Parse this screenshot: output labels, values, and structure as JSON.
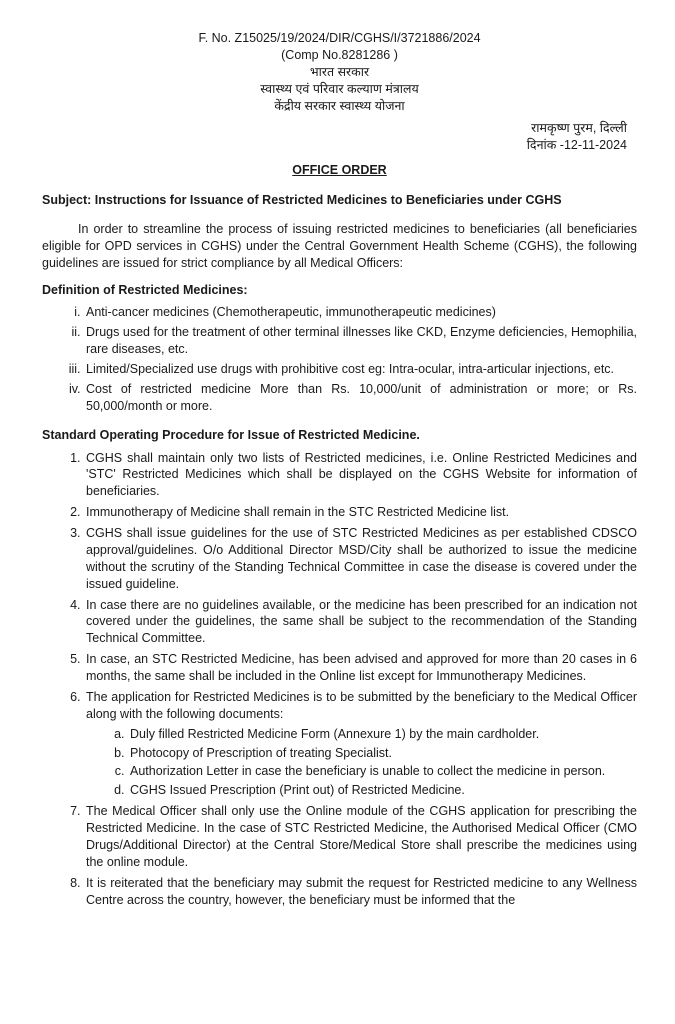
{
  "header": {
    "file_no": "F. No. Z15025/19/2024/DIR/CGHS/I/3721886/2024",
    "comp_no": "(Comp No.8281286 )",
    "gov1": "भारत सरकार",
    "gov2": "स्वास्थ्य एवं परिवार कल्याण मंत्रालय",
    "gov3": "केंद्रीय सरकार स्वास्थ्य योजना",
    "location": "रामकृष्ण पुरम, दिल्ली",
    "date": "दिनांक -12-11-2024"
  },
  "title": "OFFICE ORDER",
  "subject": "Subject: Instructions for Issuance of Restricted Medicines to Beneficiaries under CGHS",
  "intro": "In order to streamline the process of issuing restricted medicines to beneficiaries (all beneficiaries eligible for OPD services in CGHS) under the Central Government Health Scheme (CGHS), the following guidelines are issued for strict compliance by all Medical Officers:",
  "def_head": "Definition of Restricted Medicines:",
  "def_items": [
    "Anti-cancer medicines (Chemotherapeutic, immunotherapeutic medicines)",
    "Drugs used for the treatment of other terminal illnesses like CKD, Enzyme deficiencies, Hemophilia, rare diseases, etc.",
    "Limited/Specialized use drugs with prohibitive cost eg: Intra-ocular, intra-articular injections, etc.",
    "Cost of restricted medicine More than Rs. 10,000/unit of administration or more; or Rs. 50,000/month or more."
  ],
  "sop_head": "Standard Operating Procedure for Issue of Restricted Medicine.",
  "sop_items": [
    "CGHS shall maintain only two lists of Restricted medicines, i.e. Online Restricted Medicines and 'STC' Restricted Medicines which shall be displayed on the CGHS Website for information of beneficiaries.",
    "Immunotherapy of Medicine shall remain in the STC Restricted Medicine list.",
    "CGHS shall issue guidelines for the use of STC Restricted Medicines as per established CDSCO approval/guidelines. O/o Additional Director MSD/City shall be authorized to issue the medicine without the scrutiny of the Standing Technical Committee in case the disease is covered under the issued guideline.",
    "In case there are no guidelines available, or the medicine has been prescribed for an indication not covered under the guidelines, the same shall be subject to the recommendation of the Standing Technical Committee.",
    "In case, an STC Restricted Medicine, has been advised and approved for more than 20 cases in 6 months, the same shall be included in the Online list except for Immunotherapy Medicines.",
    "The application for Restricted Medicines is to be submitted by the beneficiary to the Medical Officer along with the following documents:",
    "The Medical Officer shall only use the Online module of the CGHS application for prescribing the Restricted Medicine. In the case of STC Restricted Medicine, the Authorised Medical Officer (CMO Drugs/Additional Director) at the Central Store/Medical Store shall prescribe the medicines using the online module.",
    "It is reiterated that the beneficiary may submit the request for Restricted medicine to any Wellness Centre across the country, however, the beneficiary must be informed that the"
  ],
  "sop6_sub": [
    "Duly filled Restricted Medicine Form (Annexure 1) by the main cardholder.",
    "Photocopy of Prescription of treating Specialist.",
    "Authorization Letter in case the beneficiary is unable to collect the medicine in person.",
    "CGHS Issued Prescription (Print out) of Restricted Medicine."
  ]
}
